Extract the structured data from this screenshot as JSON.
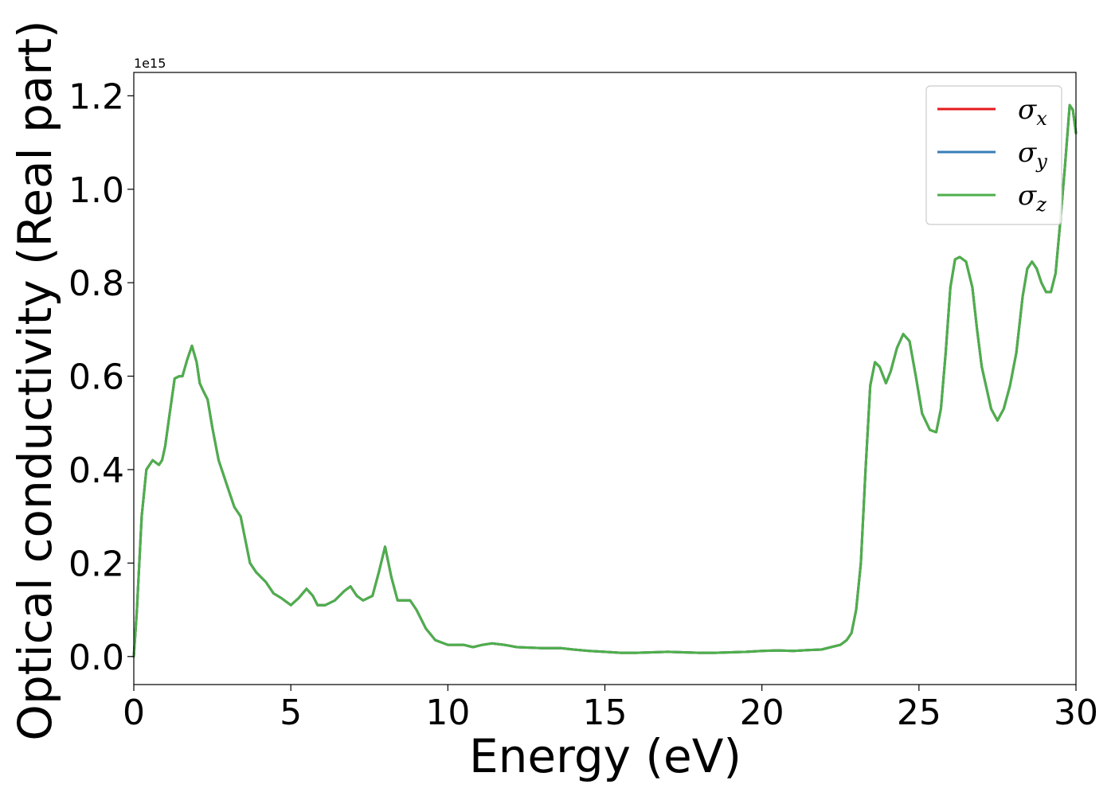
{
  "chart_data": {
    "type": "line",
    "xlabel": "Energy (eV)",
    "ylabel": "Optical conductivity (Real part)",
    "y_offset_text": "1e15",
    "y_scale_multiplier": 1000000000000000.0,
    "xlim": [
      0,
      30
    ],
    "ylim": [
      -0.06,
      1.25
    ],
    "xticks": [
      0,
      5,
      10,
      15,
      20,
      25,
      30
    ],
    "xtick_labels": [
      "0",
      "5",
      "10",
      "15",
      "20",
      "25",
      "30"
    ],
    "yticks": [
      0.0,
      0.2,
      0.4,
      0.6,
      0.8,
      1.0,
      1.2
    ],
    "ytick_labels": [
      "0.0",
      "0.2",
      "0.4",
      "0.6",
      "0.8",
      "1.0",
      "1.2"
    ],
    "grid": false,
    "legend_position": "top-right",
    "x": [
      0.0,
      0.1,
      0.25,
      0.4,
      0.6,
      0.8,
      0.9,
      1.0,
      1.1,
      1.3,
      1.45,
      1.55,
      1.7,
      1.85,
      2.0,
      2.1,
      2.2,
      2.35,
      2.5,
      2.7,
      3.0,
      3.2,
      3.4,
      3.55,
      3.7,
      3.9,
      4.2,
      4.45,
      4.7,
      5.0,
      5.25,
      5.5,
      5.7,
      5.85,
      6.1,
      6.4,
      6.7,
      6.9,
      7.1,
      7.3,
      7.6,
      7.8,
      8.0,
      8.2,
      8.4,
      8.6,
      8.8,
      9.0,
      9.3,
      9.6,
      10.0,
      10.5,
      10.8,
      11.1,
      11.4,
      11.8,
      12.2,
      13.0,
      13.6,
      14.0,
      14.5,
      15.0,
      15.5,
      16.0,
      16.5,
      17.0,
      17.5,
      18.0,
      18.5,
      19.0,
      19.5,
      20.0,
      20.5,
      21.0,
      21.5,
      21.9,
      22.2,
      22.5,
      22.7,
      22.85,
      23.0,
      23.15,
      23.3,
      23.45,
      23.6,
      23.75,
      23.95,
      24.1,
      24.3,
      24.5,
      24.7,
      24.9,
      25.1,
      25.35,
      25.55,
      25.7,
      25.85,
      26.0,
      26.15,
      26.3,
      26.5,
      26.7,
      26.85,
      27.0,
      27.3,
      27.5,
      27.7,
      27.9,
      28.1,
      28.3,
      28.45,
      28.6,
      28.75,
      28.9,
      29.05,
      29.2,
      29.35,
      29.5,
      29.65,
      29.8,
      29.9,
      30.0
    ],
    "series": [
      {
        "name": "σ",
        "subscript": "x",
        "color": "#e41a1c",
        "values": [
          0.0,
          0.1,
          0.3,
          0.4,
          0.42,
          0.41,
          0.42,
          0.45,
          0.5,
          0.595,
          0.6,
          0.6,
          0.635,
          0.665,
          0.63,
          0.585,
          0.57,
          0.55,
          0.49,
          0.42,
          0.36,
          0.32,
          0.3,
          0.25,
          0.2,
          0.18,
          0.16,
          0.135,
          0.125,
          0.11,
          0.125,
          0.145,
          0.13,
          0.11,
          0.11,
          0.12,
          0.14,
          0.15,
          0.13,
          0.12,
          0.13,
          0.18,
          0.235,
          0.17,
          0.12,
          0.12,
          0.12,
          0.1,
          0.06,
          0.035,
          0.025,
          0.025,
          0.02,
          0.025,
          0.028,
          0.025,
          0.02,
          0.018,
          0.018,
          0.015,
          0.012,
          0.01,
          0.008,
          0.008,
          0.009,
          0.01,
          0.009,
          0.008,
          0.008,
          0.009,
          0.01,
          0.012,
          0.013,
          0.012,
          0.014,
          0.015,
          0.02,
          0.025,
          0.035,
          0.05,
          0.1,
          0.2,
          0.4,
          0.58,
          0.63,
          0.62,
          0.585,
          0.61,
          0.66,
          0.69,
          0.675,
          0.6,
          0.52,
          0.485,
          0.48,
          0.53,
          0.65,
          0.79,
          0.85,
          0.855,
          0.845,
          0.79,
          0.7,
          0.62,
          0.53,
          0.505,
          0.53,
          0.58,
          0.65,
          0.77,
          0.83,
          0.845,
          0.83,
          0.8,
          0.78,
          0.78,
          0.82,
          0.93,
          1.05,
          1.18,
          1.17,
          1.12
        ]
      },
      {
        "name": "σ",
        "subscript": "y",
        "color": "#377eb8",
        "values": [
          0.0,
          0.1,
          0.3,
          0.4,
          0.42,
          0.41,
          0.42,
          0.45,
          0.5,
          0.595,
          0.6,
          0.6,
          0.635,
          0.665,
          0.63,
          0.585,
          0.57,
          0.55,
          0.49,
          0.42,
          0.36,
          0.32,
          0.3,
          0.25,
          0.2,
          0.18,
          0.16,
          0.135,
          0.125,
          0.11,
          0.125,
          0.145,
          0.13,
          0.11,
          0.11,
          0.12,
          0.14,
          0.15,
          0.13,
          0.12,
          0.13,
          0.18,
          0.235,
          0.17,
          0.12,
          0.12,
          0.12,
          0.1,
          0.06,
          0.035,
          0.025,
          0.025,
          0.02,
          0.025,
          0.028,
          0.025,
          0.02,
          0.018,
          0.018,
          0.015,
          0.012,
          0.01,
          0.008,
          0.008,
          0.009,
          0.01,
          0.009,
          0.008,
          0.008,
          0.009,
          0.01,
          0.012,
          0.013,
          0.012,
          0.014,
          0.015,
          0.02,
          0.025,
          0.035,
          0.05,
          0.1,
          0.2,
          0.4,
          0.58,
          0.63,
          0.62,
          0.585,
          0.61,
          0.66,
          0.69,
          0.675,
          0.6,
          0.52,
          0.485,
          0.48,
          0.53,
          0.65,
          0.79,
          0.85,
          0.855,
          0.845,
          0.79,
          0.7,
          0.62,
          0.53,
          0.505,
          0.53,
          0.58,
          0.65,
          0.77,
          0.83,
          0.845,
          0.83,
          0.8,
          0.78,
          0.78,
          0.82,
          0.93,
          1.05,
          1.18,
          1.17,
          1.12
        ]
      },
      {
        "name": "σ",
        "subscript": "z",
        "color": "#4daf4a",
        "values": [
          0.0,
          0.1,
          0.3,
          0.4,
          0.42,
          0.41,
          0.42,
          0.45,
          0.5,
          0.595,
          0.6,
          0.6,
          0.635,
          0.665,
          0.63,
          0.585,
          0.57,
          0.55,
          0.49,
          0.42,
          0.36,
          0.32,
          0.3,
          0.25,
          0.2,
          0.18,
          0.16,
          0.135,
          0.125,
          0.11,
          0.125,
          0.145,
          0.13,
          0.11,
          0.11,
          0.12,
          0.14,
          0.15,
          0.13,
          0.12,
          0.13,
          0.18,
          0.235,
          0.17,
          0.12,
          0.12,
          0.12,
          0.1,
          0.06,
          0.035,
          0.025,
          0.025,
          0.02,
          0.025,
          0.028,
          0.025,
          0.02,
          0.018,
          0.018,
          0.015,
          0.012,
          0.01,
          0.008,
          0.008,
          0.009,
          0.01,
          0.009,
          0.008,
          0.008,
          0.009,
          0.01,
          0.012,
          0.013,
          0.012,
          0.014,
          0.015,
          0.02,
          0.025,
          0.035,
          0.05,
          0.1,
          0.2,
          0.4,
          0.58,
          0.63,
          0.62,
          0.585,
          0.61,
          0.66,
          0.69,
          0.675,
          0.6,
          0.52,
          0.485,
          0.48,
          0.53,
          0.65,
          0.79,
          0.85,
          0.855,
          0.845,
          0.79,
          0.7,
          0.62,
          0.53,
          0.505,
          0.53,
          0.58,
          0.65,
          0.77,
          0.83,
          0.845,
          0.83,
          0.8,
          0.78,
          0.78,
          0.82,
          0.93,
          1.05,
          1.18,
          1.17,
          1.12
        ]
      }
    ]
  }
}
